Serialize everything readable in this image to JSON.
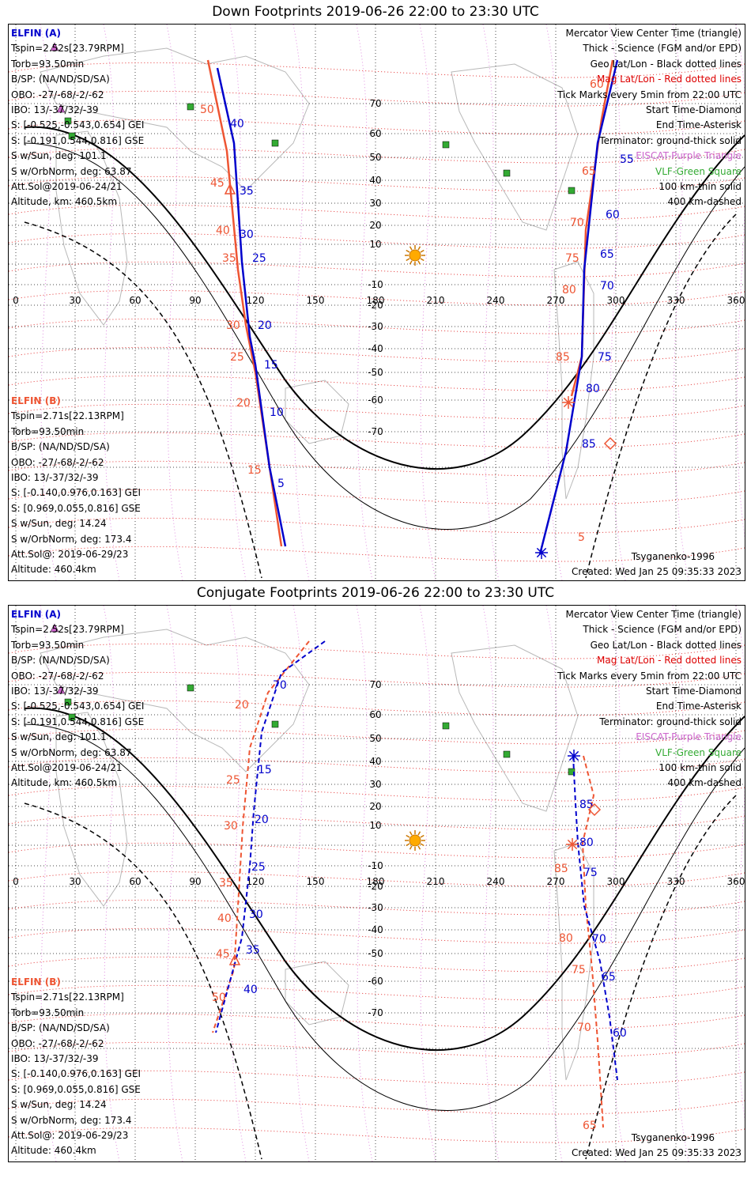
{
  "panels": [
    {
      "title": "Down Footprints 2019-06-26 22:00 to 23:30 UTC",
      "sc_a": {
        "name": "ELFIN (A)",
        "lines": [
          "Tspin=2.52s[23.79RPM]",
          "Torb=93.50min",
          "B/SP: (NA/ND/SD/SA)",
          "OBO: -27/-68/-2/-62",
          "IBO: 13/-37/32/-39",
          "S: [-0.525,-0.543,0.654] GEI",
          "S: [-0.191,0.544,0.816] GSE",
          "S w/Sun, deg: 101.1",
          "S w/OrbNorm, deg: 63.87",
          "Att.Sol@2019-06-24/21",
          "Altitude, km: 460.5km"
        ]
      },
      "sc_b": {
        "name": "ELFIN (B)",
        "lines": [
          "Tspin=2.71s[22.13RPM]",
          "Torb=93.50min",
          "B/SP: (NA/ND/SD/SA)",
          "OBO: -27/-68/-2/-62",
          "IBO: 13/-37/32/-39",
          "S: [-0.140,0.976,0.163] GEI",
          "S: [0.969,0.055,0.816] GSE",
          "S w/Sun, deg: 14.24",
          "S w/OrbNorm, deg: 173.4",
          "Att.Sol@: 2019-06-29/23",
          "Altitude: 460.4km"
        ]
      },
      "legend": [
        "Mercator View Center Time (triangle)",
        "Thick - Science (FGM and/or EPD)",
        "Geo Lat/Lon - Black dotted lines",
        "Mag Lat/Lon - Red dotted lines",
        "Tick Marks every 5min from 22:00 UTC",
        "Start Time-Diamond",
        "End Time-Asterisk",
        "Terminator: ground-thick solid",
        "EISCAT-Purple Triangle",
        "VLF-Green Square",
        "100 km-thin solid",
        "400 km-dashed"
      ],
      "model": "Tsyganenko-1996",
      "created": "Created: Wed Jan 25 09:35:33 2023",
      "track_a_labels": [
        "40",
        "35",
        "30",
        "25",
        "20",
        "15",
        "10",
        "5",
        "55",
        "60",
        "65",
        "70",
        "75",
        "80",
        "85"
      ],
      "track_b_labels": [
        "50",
        "45",
        "40",
        "35",
        "30",
        "25",
        "20",
        "15",
        "60",
        "65",
        "70",
        "75",
        "80",
        "85",
        "5"
      ]
    },
    {
      "title": "Conjugate Footprints 2019-06-26 22:00 to 23:30 UTC",
      "sc_a": {
        "name": "ELFIN (A)",
        "lines": [
          "Tspin=2.52s[23.79RPM]",
          "Torb=93.50min",
          "B/SP: (NA/ND/SD/SA)",
          "OBO: -27/-68/-2/-62",
          "IBO: 13/-37/32/-39",
          "S: [-0.525,-0.543,0.654] GEI",
          "S: [-0.191,0.544,0.816] GSE",
          "S w/Sun, deg: 101.1",
          "S w/OrbNorm, deg: 63.87",
          "Att.Sol@2019-06-24/21",
          "Altitude, km: 460.5km"
        ]
      },
      "sc_b": {
        "name": "ELFIN (B)",
        "lines": [
          "Tspin=2.71s[22.13RPM]",
          "Torb=93.50min",
          "B/SP: (NA/ND/SD/SA)",
          "OBO: -27/-68/-2/-62",
          "IBO: 13/-37/32/-39",
          "S: [-0.140,0.976,0.163] GEI",
          "S: [0.969,0.055,0.816] GSE",
          "S w/Sun, deg: 14.24",
          "S w/OrbNorm, deg: 173.4",
          "Att.Sol@: 2019-06-29/23",
          "Altitude: 460.4km"
        ]
      },
      "legend": [
        "Mercator View Center Time (triangle)",
        "Thick - Science (FGM and/or EPD)",
        "Geo Lat/Lon - Black dotted lines",
        "Mag Lat/Lon - Red dotted lines",
        "Tick Marks every 5min from 22:00 UTC",
        "Start Time-Diamond",
        "End Time-Asterisk",
        "Terminator: ground-thick solid",
        "EISCAT-Purple Triangle",
        "VLF-Green Square",
        "100 km-thin solid",
        "400 km-dashed"
      ],
      "model": "Tsyganenko-1996",
      "created": "Created: Wed Jan 25 09:35:33 2023",
      "track_a_labels": [
        "70",
        "15",
        "20",
        "25",
        "30",
        "35",
        "40",
        "85",
        "80",
        "75",
        "70",
        "65",
        "60"
      ],
      "track_b_labels": [
        "20",
        "25",
        "30",
        "35",
        "40",
        "45",
        "50",
        "85",
        "80",
        "75",
        "70",
        "65"
      ]
    }
  ],
  "axes": {
    "lon_ticks": [
      "0",
      "30",
      "60",
      "90",
      "120",
      "150",
      "180",
      "210",
      "240",
      "270",
      "300",
      "330",
      "360"
    ],
    "lat_ticks": [
      "70",
      "60",
      "50",
      "40",
      "30",
      "20",
      "10",
      "-10",
      "-20",
      "-30",
      "-40",
      "-50",
      "-60",
      "-70"
    ]
  },
  "colors": {
    "sc_a": "#0000cc",
    "sc_b": "#ee5533",
    "mag": "#dd0000",
    "eiscat": "#cc66cc",
    "vlf": "#33aa33",
    "sun": "#ffaa00"
  }
}
